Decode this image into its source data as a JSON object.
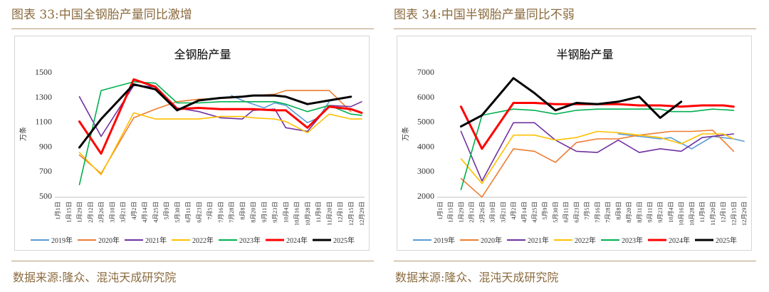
{
  "figures": [
    {
      "fig_title": "图表 33:中国全钢胎产量同比激增",
      "source": "数据来源:隆众、混沌天成研究院"
    },
    {
      "fig_title": "图表 34:中国半钢胎产量同比不弱",
      "source": "数据来源:隆众、混沌天成研究院"
    }
  ],
  "chart_data": [
    {
      "type": "line",
      "title": "全钢胎产量",
      "ylabel": "万条",
      "xlabel": "",
      "ylim": [
        500,
        1500
      ],
      "yticks": [
        500,
        700,
        900,
        1100,
        1300,
        1500
      ],
      "grid": false,
      "legend": "bottom",
      "categories": [
        "1月1日",
        "1月15日",
        "1月29日",
        "2月12日",
        "2月26日",
        "3月10日",
        "3月21日",
        "4月2日",
        "4月14日",
        "4月25日",
        "5月9日",
        "5月30日",
        "6月11日",
        "6月23日",
        "7月5日",
        "7月16日",
        "7月28日",
        "8月8日",
        "8月20日",
        "9月11日",
        "9月23日",
        "10月4日",
        "10月16日",
        "10月28日",
        "11月8日",
        "11月20日",
        "12月1日",
        "12月15日",
        "12月29日"
      ],
      "series": [
        {
          "name": "2019年",
          "color": "#5b9bd5",
          "values": [
            null,
            null,
            null,
            null,
            null,
            null,
            null,
            null,
            null,
            null,
            null,
            null,
            null,
            null,
            null,
            null,
            1310,
            1270,
            1240,
            1210,
            1250,
            1230,
            1160,
            1090,
            1130,
            1260,
            null,
            null,
            null
          ]
        },
        {
          "name": "2020年",
          "color": "#ed7d31",
          "values": [
            null,
            null,
            830,
            null,
            680,
            null,
            null,
            1130,
            null,
            1200,
            null,
            1260,
            null,
            1280,
            null,
            null,
            1290,
            null,
            1310,
            null,
            1320,
            1350,
            null,
            1350,
            null,
            1350,
            null,
            1180,
            null
          ]
        },
        {
          "name": "2021年",
          "color": "#7030a0",
          "values": [
            null,
            null,
            1300,
            null,
            980,
            null,
            null,
            1390,
            null,
            1380,
            null,
            1210,
            null,
            1180,
            null,
            1130,
            null,
            1120,
            1190,
            null,
            1200,
            1050,
            null,
            1020,
            null,
            1230,
            null,
            1220,
            1260
          ]
        },
        {
          "name": "2022年",
          "color": "#ffc000",
          "values": [
            null,
            null,
            850,
            null,
            670,
            null,
            null,
            1170,
            null,
            1120,
            null,
            1120,
            null,
            1120,
            null,
            1140,
            null,
            1140,
            1130,
            null,
            1120,
            1100,
            null,
            1010,
            null,
            1160,
            null,
            1120,
            1120
          ]
        },
        {
          "name": "2023年",
          "color": "#00b050",
          "values": [
            null,
            null,
            590,
            null,
            1350,
            null,
            null,
            1420,
            null,
            1410,
            null,
            1250,
            null,
            1250,
            null,
            1260,
            null,
            1260,
            1260,
            null,
            1260,
            1240,
            null,
            1180,
            null,
            1230,
            null,
            1160,
            1150
          ]
        },
        {
          "name": "2024年",
          "color": "#ff0000",
          "values": [
            null,
            null,
            1100,
            null,
            840,
            null,
            null,
            1440,
            null,
            1380,
            null,
            1200,
            null,
            1210,
            null,
            1200,
            null,
            1200,
            1200,
            null,
            1190,
            1190,
            null,
            1050,
            null,
            1220,
            null,
            1200,
            1170
          ]
        },
        {
          "name": "2025年",
          "color": "#000000",
          "values": [
            null,
            null,
            890,
            null,
            1120,
            null,
            null,
            1400,
            null,
            1360,
            null,
            1190,
            null,
            1270,
            null,
            1290,
            null,
            1300,
            1310,
            null,
            1310,
            1300,
            null,
            1240,
            null,
            1270,
            null,
            1300,
            null
          ]
        }
      ]
    },
    {
      "type": "line",
      "title": "半钢胎产量",
      "ylabel": "万条",
      "xlabel": "",
      "ylim": [
        2000,
        7000
      ],
      "yticks": [
        2000,
        3000,
        4000,
        5000,
        6000,
        7000
      ],
      "grid": false,
      "legend": "bottom",
      "categories": [
        "1月1日",
        "1月15日",
        "1月29日",
        "2月12日",
        "2月26日",
        "3月10日",
        "3月21日",
        "4月2日",
        "4月14日",
        "4月25日",
        "5月9日",
        "5月30日",
        "6月11日",
        "6月23日",
        "7月5日",
        "7月16日",
        "7月28日",
        "8月8日",
        "8月20日",
        "8月31日",
        "9月11日",
        "9月23日",
        "10月4日",
        "10月16日",
        "10月28日",
        "11月8日",
        "11月20日",
        "12月1日",
        "12月15日",
        "12月29日"
      ],
      "series": [
        {
          "name": "2019年",
          "color": "#5b9bd5",
          "values": [
            null,
            null,
            null,
            null,
            null,
            null,
            null,
            null,
            null,
            null,
            null,
            null,
            null,
            null,
            null,
            null,
            null,
            4500,
            null,
            4400,
            null,
            4300,
            4350,
            null,
            3900,
            null,
            4400,
            null,
            4300,
            4200
          ]
        },
        {
          "name": "2020年",
          "color": "#ed7d31",
          "values": [
            null,
            null,
            2700,
            null,
            1950,
            null,
            null,
            3900,
            null,
            3800,
            null,
            3350,
            null,
            4150,
            null,
            4300,
            null,
            4300,
            null,
            4450,
            null,
            4550,
            4600,
            null,
            4600,
            null,
            4650,
            null,
            3800,
            null
          ]
        },
        {
          "name": "2021年",
          "color": "#7030a0",
          "values": [
            null,
            null,
            4600,
            null,
            2600,
            null,
            null,
            4950,
            null,
            4950,
            null,
            4250,
            null,
            3800,
            null,
            3750,
            null,
            4250,
            null,
            3750,
            null,
            3900,
            null,
            3800,
            null,
            4350,
            null,
            4450,
            4500,
            null
          ]
        },
        {
          "name": "2022年",
          "color": "#ffc000",
          "values": [
            null,
            null,
            3500,
            null,
            2500,
            null,
            null,
            4450,
            null,
            4450,
            null,
            4250,
            null,
            4350,
            null,
            4600,
            null,
            4550,
            null,
            4450,
            null,
            4350,
            null,
            4100,
            null,
            4500,
            null,
            4500,
            4300,
            null
          ]
        },
        {
          "name": "2023年",
          "color": "#00b050",
          "values": [
            null,
            null,
            2250,
            null,
            5250,
            null,
            null,
            5500,
            null,
            5450,
            null,
            5300,
            null,
            5450,
            null,
            5500,
            null,
            5500,
            null,
            5500,
            null,
            5500,
            5400,
            null,
            5400,
            null,
            5500,
            null,
            5450,
            null
          ]
        },
        {
          "name": "2024年",
          "color": "#ff0000",
          "values": [
            null,
            null,
            5600,
            null,
            3900,
            null,
            null,
            5750,
            null,
            5750,
            null,
            5700,
            null,
            5700,
            null,
            5700,
            null,
            5700,
            null,
            5650,
            null,
            5650,
            null,
            5600,
            null,
            5650,
            null,
            5650,
            5600,
            null
          ]
        },
        {
          "name": "2025年",
          "color": "#000000",
          "values": [
            null,
            null,
            4800,
            null,
            5250,
            null,
            null,
            6750,
            null,
            6150,
            null,
            5450,
            null,
            5750,
            null,
            5700,
            null,
            5800,
            null,
            6000,
            null,
            5150,
            null,
            5800,
            null,
            null,
            null,
            null,
            null,
            null
          ]
        }
      ]
    }
  ]
}
